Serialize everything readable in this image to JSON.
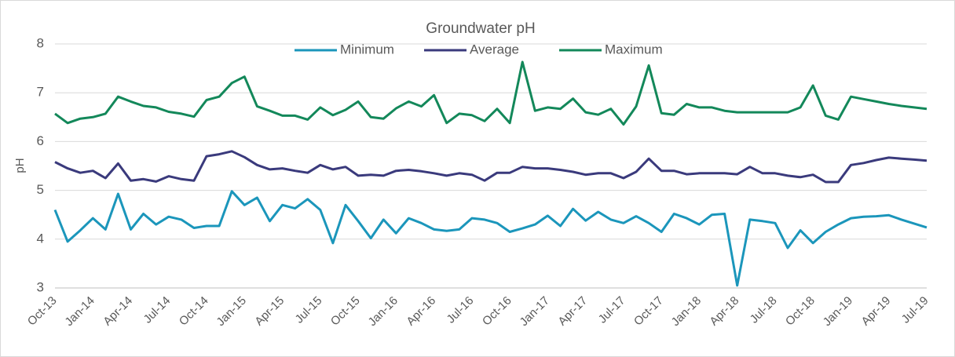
{
  "chart_data": {
    "type": "line",
    "title": "Groundwater  pH",
    "y_label": "pH",
    "categories": [
      "Oct-13",
      null,
      null,
      "Jan-14",
      null,
      null,
      "Apr-14",
      null,
      null,
      "Jul-14",
      null,
      null,
      "Oct-14",
      null,
      null,
      "Jan-15",
      null,
      null,
      "Apr-15",
      null,
      null,
      "Jul-15",
      null,
      null,
      "Oct-15",
      null,
      null,
      "Jan-16",
      null,
      null,
      "Apr-16",
      null,
      null,
      "Jul-16",
      null,
      null,
      "Oct-16",
      null,
      null,
      "Jan-17",
      null,
      null,
      "Apr-17",
      null,
      null,
      "Jul-17",
      null,
      null,
      "Oct-17",
      null,
      null,
      "Jan-18",
      null,
      null,
      "Apr-18",
      null,
      null,
      "Jul-18",
      null,
      null,
      "Oct-18",
      null,
      null,
      "Jan-19",
      null,
      null,
      "Apr-19",
      null,
      null,
      "Jul-19"
    ],
    "series": [
      {
        "name": "Minimum",
        "color": "#1b96bb",
        "values": [
          4.6,
          3.95,
          4.18,
          4.43,
          4.2,
          4.93,
          4.2,
          4.52,
          4.3,
          4.46,
          4.4,
          4.23,
          4.27,
          4.27,
          4.98,
          4.7,
          4.85,
          4.37,
          4.7,
          4.63,
          4.82,
          4.6,
          3.92,
          4.7,
          4.37,
          4.02,
          4.4,
          4.12,
          4.43,
          4.33,
          4.2,
          4.17,
          4.2,
          4.43,
          4.4,
          4.33,
          4.15,
          4.22,
          4.3,
          4.48,
          4.27,
          4.62,
          4.38,
          4.56,
          4.4,
          4.33,
          4.47,
          4.33,
          4.15,
          4.52,
          4.43,
          4.3,
          4.5,
          4.52,
          3.05,
          4.4,
          4.37,
          4.33,
          3.82,
          4.18,
          3.92,
          4.15,
          4.3,
          4.43,
          4.46,
          4.47,
          4.49,
          4.4,
          4.32,
          4.24
        ]
      },
      {
        "name": "Average",
        "color": "#3a3a7c",
        "values": [
          5.58,
          5.45,
          5.36,
          5.4,
          5.25,
          5.55,
          5.2,
          5.23,
          5.18,
          5.29,
          5.23,
          5.2,
          5.7,
          5.74,
          5.8,
          5.68,
          5.52,
          5.43,
          5.45,
          5.4,
          5.36,
          5.52,
          5.43,
          5.48,
          5.3,
          5.32,
          5.3,
          5.4,
          5.42,
          5.39,
          5.35,
          5.3,
          5.35,
          5.32,
          5.2,
          5.36,
          5.36,
          5.48,
          5.45,
          5.45,
          5.42,
          5.38,
          5.32,
          5.35,
          5.35,
          5.25,
          5.38,
          5.65,
          5.4,
          5.4,
          5.33,
          5.35,
          5.35,
          5.35,
          5.33,
          5.48,
          5.35,
          5.35,
          5.3,
          5.27,
          5.32,
          5.17,
          5.17,
          5.52,
          5.56,
          5.62,
          5.67,
          5.65,
          5.63,
          5.61
        ]
      },
      {
        "name": "Maximum",
        "color": "#13885a",
        "values": [
          6.57,
          6.38,
          6.47,
          6.5,
          6.57,
          6.92,
          6.82,
          6.73,
          6.7,
          6.61,
          6.57,
          6.51,
          6.85,
          6.92,
          7.2,
          7.33,
          6.72,
          6.63,
          6.53,
          6.53,
          6.45,
          6.7,
          6.54,
          6.65,
          6.82,
          6.5,
          6.47,
          6.68,
          6.82,
          6.72,
          6.95,
          6.38,
          6.57,
          6.54,
          6.42,
          6.67,
          6.38,
          7.63,
          6.63,
          6.7,
          6.67,
          6.88,
          6.6,
          6.55,
          6.67,
          6.35,
          6.72,
          7.56,
          6.58,
          6.55,
          6.77,
          6.7,
          6.7,
          6.63,
          6.6,
          6.6,
          6.6,
          6.6,
          6.6,
          6.7,
          7.15,
          6.53,
          6.45,
          6.92,
          6.87,
          6.82,
          6.77,
          6.73,
          6.7,
          6.67
        ]
      }
    ],
    "ylim": [
      3,
      8
    ],
    "yticks": [
      3,
      4,
      5,
      6,
      7,
      8
    ],
    "grid": true,
    "legend": "top"
  }
}
